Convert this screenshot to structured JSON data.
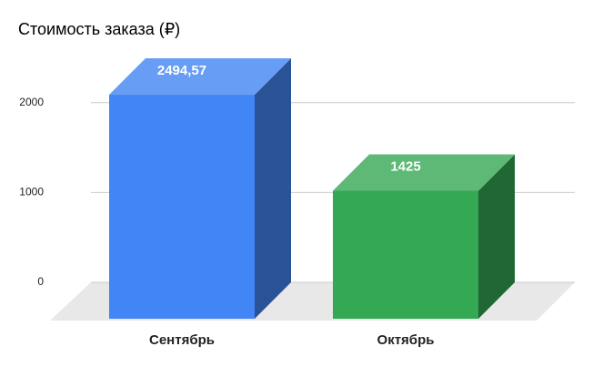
{
  "chart_data": {
    "type": "bar3d",
    "title": "Стоимость заказа (₽)",
    "categories": [
      "Сентябрь",
      "Октябрь"
    ],
    "values": [
      2494.57,
      1425
    ],
    "value_labels": [
      "2494,57",
      "1425"
    ],
    "colors": [
      "#4285f4",
      "#34a853"
    ],
    "ylim": [
      0,
      2500
    ],
    "yticks": [
      0,
      1000,
      2000
    ],
    "grid": true
  }
}
